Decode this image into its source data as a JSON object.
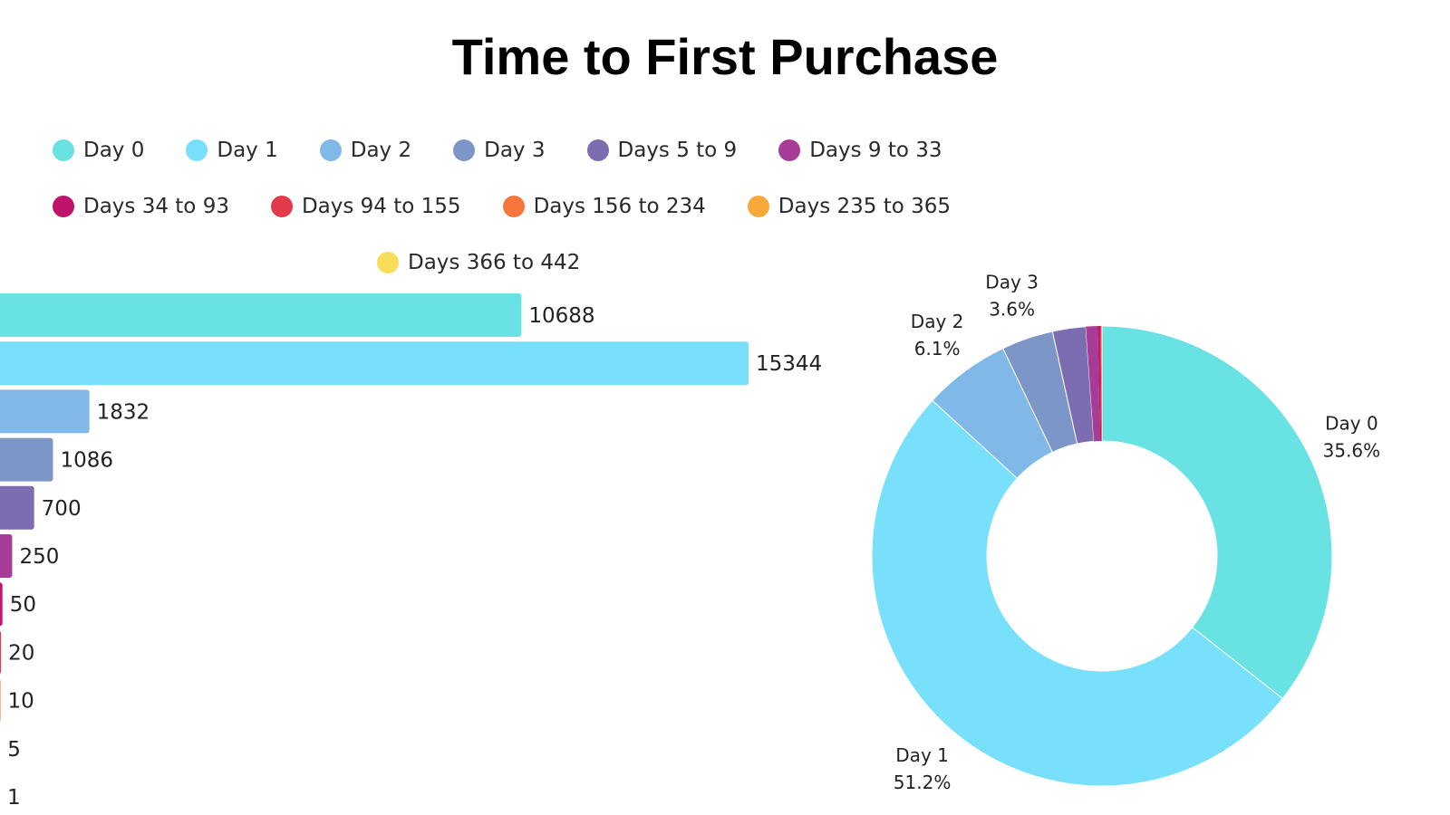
{
  "chart_data": {
    "title": "Time to First Purchase",
    "categories": [
      "Day 0",
      "Day 1",
      "Day 2",
      "Day 3",
      "Days 5 to 9",
      "Days 9 to 33",
      "Days 34 to 93",
      "Days 94 to 155",
      "Days 156 to 234",
      "Days 235 to 365",
      "Days 366 to 442"
    ],
    "colors": [
      "#69e2e4",
      "#78e0fb",
      "#80b8e8",
      "#7d96c8",
      "#7c6db0",
      "#a63c95",
      "#c0146b",
      "#e23a4a",
      "#f7743a",
      "#f9a83a",
      "#f9dd5a"
    ],
    "bar": {
      "type": "bar",
      "orientation": "horizontal",
      "values": [
        10688,
        15344,
        1832,
        1086,
        700,
        250,
        50,
        20,
        10,
        5,
        1
      ],
      "data_labels": [
        "10688",
        "15344",
        "1832",
        "1086",
        "700",
        "250",
        "50",
        "20",
        "10",
        "5",
        "1"
      ]
    },
    "pie": {
      "type": "pie",
      "donut": true,
      "slices": [
        {
          "label": "Day 0",
          "percent_label": "35.6%",
          "value": 10688
        },
        {
          "label": "Day 1",
          "percent_label": "51.2%",
          "value": 15344
        },
        {
          "label": "Day 2",
          "percent_label": "6.1%",
          "value": 1832
        },
        {
          "label": "Day 3",
          "percent_label": "3.6%",
          "value": 1086
        },
        {
          "label": "",
          "percent_label": "",
          "value": 700
        },
        {
          "label": "",
          "percent_label": "",
          "value": 250
        },
        {
          "label": "",
          "percent_label": "",
          "value": 50
        },
        {
          "label": "",
          "percent_label": "",
          "value": 20
        },
        {
          "label": "",
          "percent_label": "",
          "value": 10
        },
        {
          "label": "",
          "percent_label": "",
          "value": 5
        },
        {
          "label": "",
          "percent_label": "",
          "value": 1
        }
      ]
    },
    "legend_placement": "top-left",
    "grid": false
  }
}
